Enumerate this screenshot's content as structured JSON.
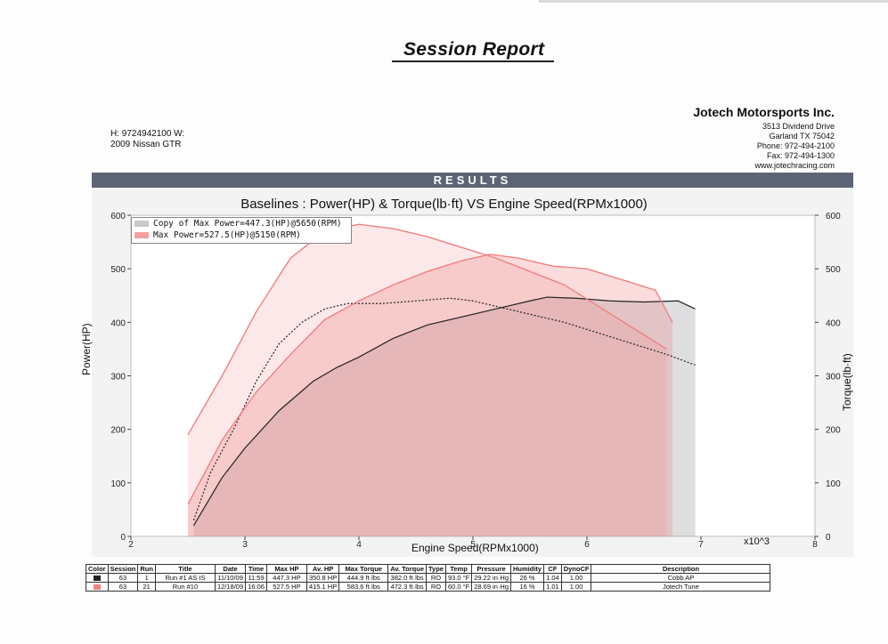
{
  "report_title": "Session Report",
  "customer": {
    "phone_line": "H: 9724942100  W:",
    "vehicle": "2009 Nissan GTR"
  },
  "company": {
    "name": "Jotech Motorsports Inc.",
    "address1": "3513 Dividend Drive",
    "address2": "Garland TX 75042",
    "phone": "Phone: 972-494-2100",
    "fax": "Fax:   972-494-1300",
    "web": "www.jotechracing.com"
  },
  "results_label": "RESULTS",
  "colors": {
    "run1": "#222222",
    "run2": "#f08080",
    "bar": "#5c6573"
  },
  "chart_data": {
    "type": "line",
    "title": "Baselines : Power(HP) & Torque(lb·ft) VS Engine Speed(RPMx1000)",
    "xlabel": "Engine Speed(RPMx1000)",
    "xmult": "x10^3",
    "ylabel_left": "Power(HP)",
    "ylabel_right": "Torque(lb·ft)",
    "xlim": [
      2,
      8
    ],
    "ylim": [
      0,
      600
    ],
    "xticks": [
      "2",
      "3",
      "4",
      "5",
      "6",
      "7",
      "8"
    ],
    "yticks": [
      "0",
      "100",
      "200",
      "300",
      "400",
      "500",
      "600"
    ],
    "legend": [
      "Copy of Max Power=447.3(HP)@5650(RPM)",
      "Max Power=527.5(HP)@5150(RPM)"
    ],
    "series": [
      {
        "name": "Run #1 AS IS Power",
        "color": "#222222",
        "dash": "",
        "x": [
          2.55,
          2.8,
          3.0,
          3.3,
          3.6,
          3.8,
          4.0,
          4.3,
          4.6,
          5.0,
          5.3,
          5.5,
          5.65,
          5.9,
          6.2,
          6.5,
          6.8,
          6.95
        ],
        "y": [
          20,
          110,
          165,
          235,
          290,
          315,
          335,
          370,
          395,
          415,
          430,
          440,
          447,
          445,
          440,
          438,
          440,
          425
        ]
      },
      {
        "name": "Run #1 AS IS Torque",
        "color": "#222222",
        "dash": "2,2",
        "x": [
          2.55,
          2.7,
          2.9,
          3.1,
          3.3,
          3.5,
          3.7,
          3.9,
          4.2,
          4.5,
          4.8,
          5.0,
          5.2,
          5.5,
          5.8,
          6.1,
          6.4,
          6.7,
          6.95
        ],
        "y": [
          30,
          120,
          200,
          290,
          360,
          400,
          425,
          435,
          435,
          440,
          445,
          440,
          430,
          415,
          400,
          380,
          360,
          340,
          320
        ]
      },
      {
        "name": "Run #10 Power",
        "color": "#f08080",
        "dash": "",
        "x": [
          2.5,
          2.8,
          3.1,
          3.4,
          3.7,
          4.0,
          4.3,
          4.6,
          4.9,
          5.15,
          5.4,
          5.7,
          6.0,
          6.3,
          6.6,
          6.75
        ],
        "y": [
          60,
          180,
          270,
          340,
          405,
          440,
          470,
          495,
          515,
          527,
          520,
          505,
          500,
          480,
          460,
          400
        ]
      },
      {
        "name": "Run #10 Torque",
        "color": "#f08080",
        "dash": "",
        "x": [
          2.5,
          2.8,
          3.1,
          3.4,
          3.7,
          4.0,
          4.3,
          4.6,
          4.9,
          5.2,
          5.5,
          5.8,
          6.1,
          6.4,
          6.7
        ],
        "y": [
          190,
          300,
          420,
          520,
          570,
          583,
          575,
          560,
          540,
          520,
          495,
          470,
          430,
          390,
          350
        ]
      }
    ]
  },
  "table": {
    "headers": [
      "Color",
      "Session",
      "Run",
      "Title",
      "Date",
      "Time",
      "Max HP",
      "Av. HP",
      "Max Torque",
      "Av. Torque",
      "Type",
      "Temp",
      "Pressure",
      "Humidity",
      "CF",
      "DynoCF",
      "Description"
    ],
    "rows": [
      [
        "",
        "63",
        "1",
        "Run #1 AS IS",
        "11/10/09",
        "11:59",
        "447.3 HP",
        "350.8 HP",
        "444.9 ft·lbs",
        "382.0 ft·lbs",
        "RO",
        "93.0 °F",
        "29.22 in·Hg",
        "26 %",
        "1.04",
        "1.00",
        "Cobb AP"
      ],
      [
        "",
        "63",
        "21",
        "Run #10",
        "12/18/09",
        "16:06",
        "527.5 HP",
        "415.1 HP",
        "583.6 ft·lbs",
        "472.3 ft·lbs",
        "RO",
        "60.0 °F",
        "28.69 in·Hg",
        "16 %",
        "1.01",
        "1.00",
        "Jotech Tune"
      ]
    ]
  }
}
